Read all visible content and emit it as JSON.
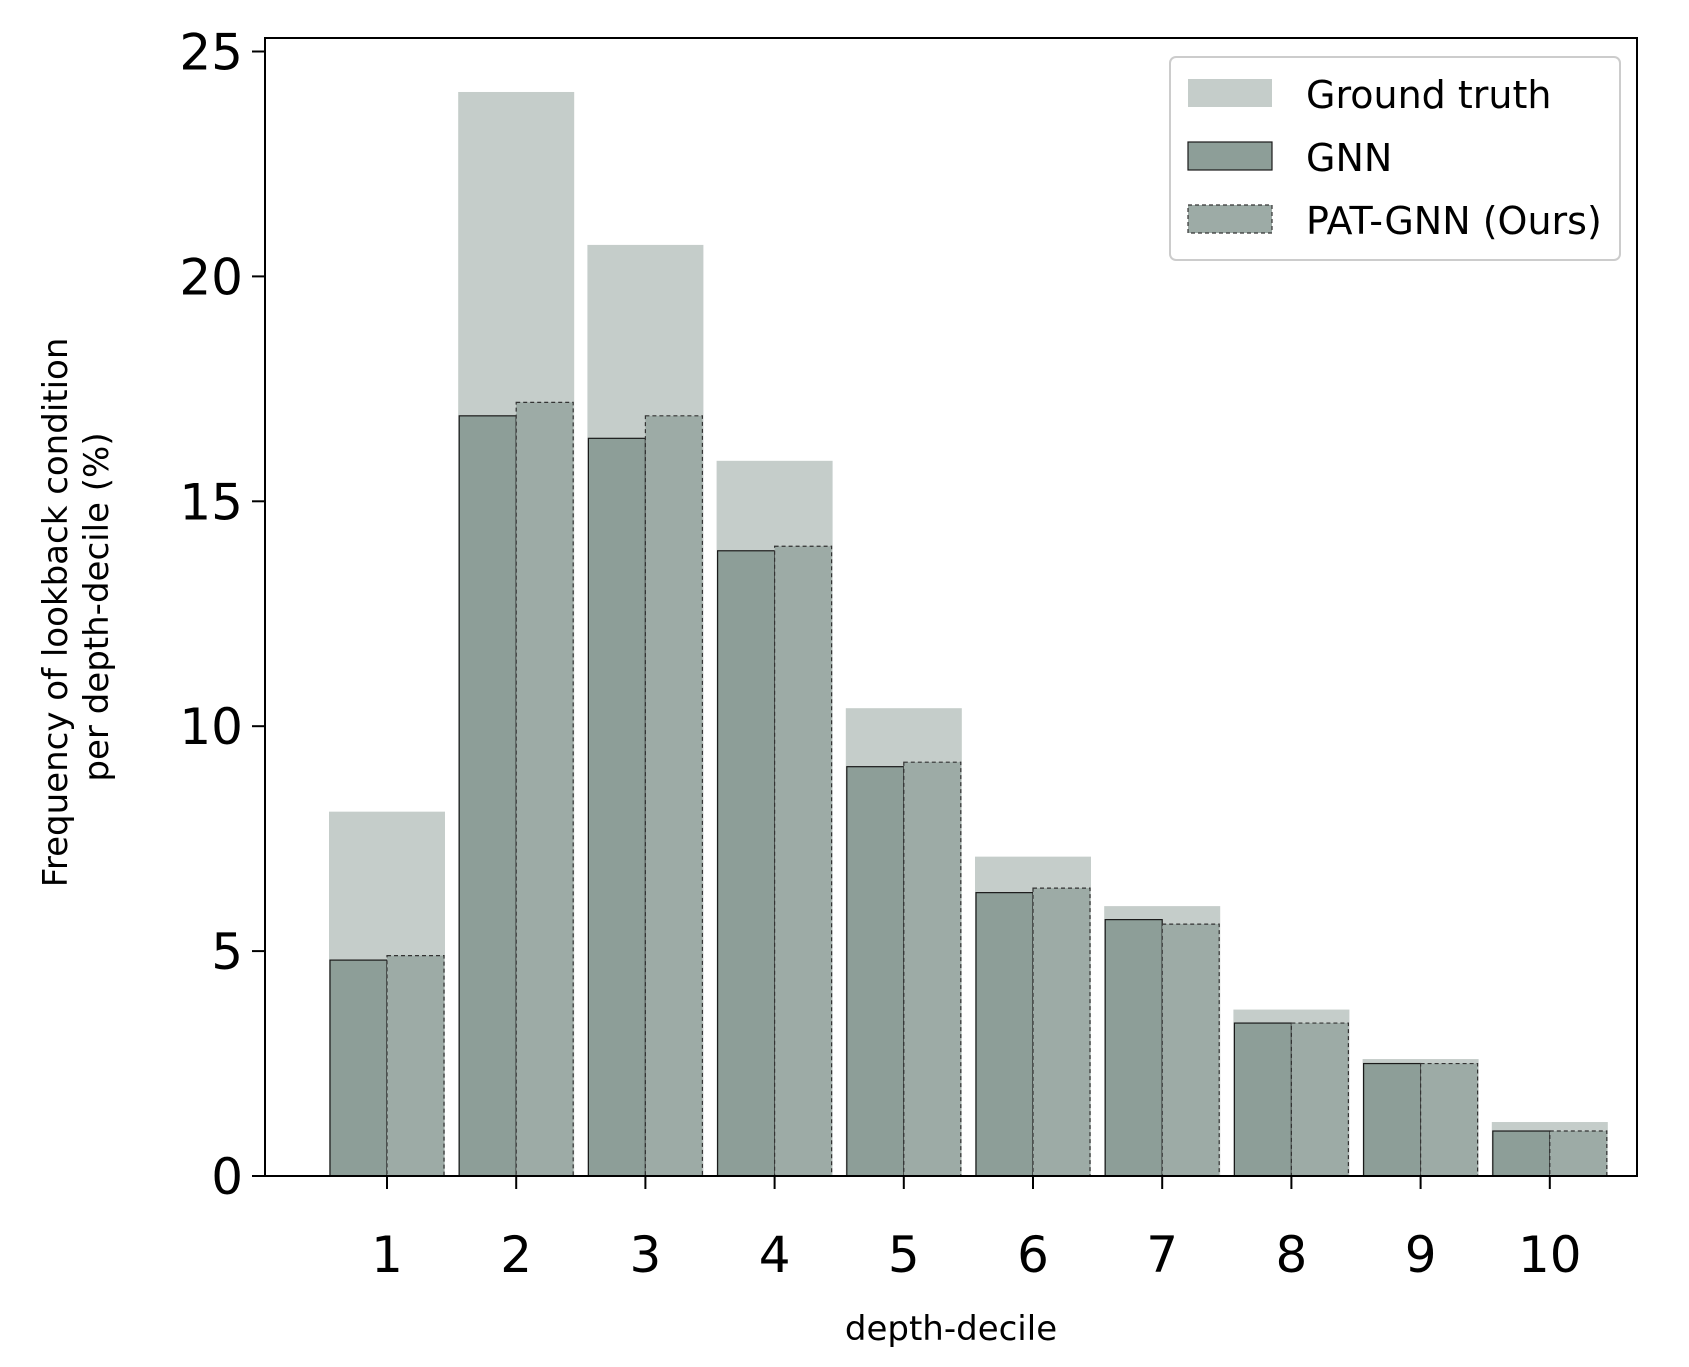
{
  "chart_data": {
    "type": "bar",
    "xlabel": "depth-decile",
    "ylabel_lines": [
      "Frequency of lookback condition",
      "per depth-decile (%)"
    ],
    "categories": [
      "1",
      "2",
      "3",
      "4",
      "5",
      "6",
      "7",
      "8",
      "9",
      "10"
    ],
    "ylim": [
      0,
      25.3
    ],
    "yticks": [
      "0",
      "5",
      "10",
      "15",
      "20",
      "25"
    ],
    "legend_position": "top-right",
    "series": [
      {
        "name": "Ground truth",
        "values": [
          8.1,
          24.1,
          20.7,
          15.9,
          10.4,
          7.1,
          6.0,
          3.7,
          2.6,
          1.2
        ],
        "color": "#c5cdca"
      },
      {
        "name": "GNN",
        "values": [
          4.8,
          16.9,
          16.4,
          13.9,
          9.1,
          6.3,
          5.7,
          3.4,
          2.5,
          1.0
        ],
        "color": "#8d9e98"
      },
      {
        "name": "PAT-GNN (Ours)",
        "values": [
          4.9,
          17.2,
          16.9,
          14.0,
          9.2,
          6.4,
          5.6,
          3.4,
          2.5,
          1.0
        ],
        "color": "#9dabA6"
      }
    ]
  }
}
